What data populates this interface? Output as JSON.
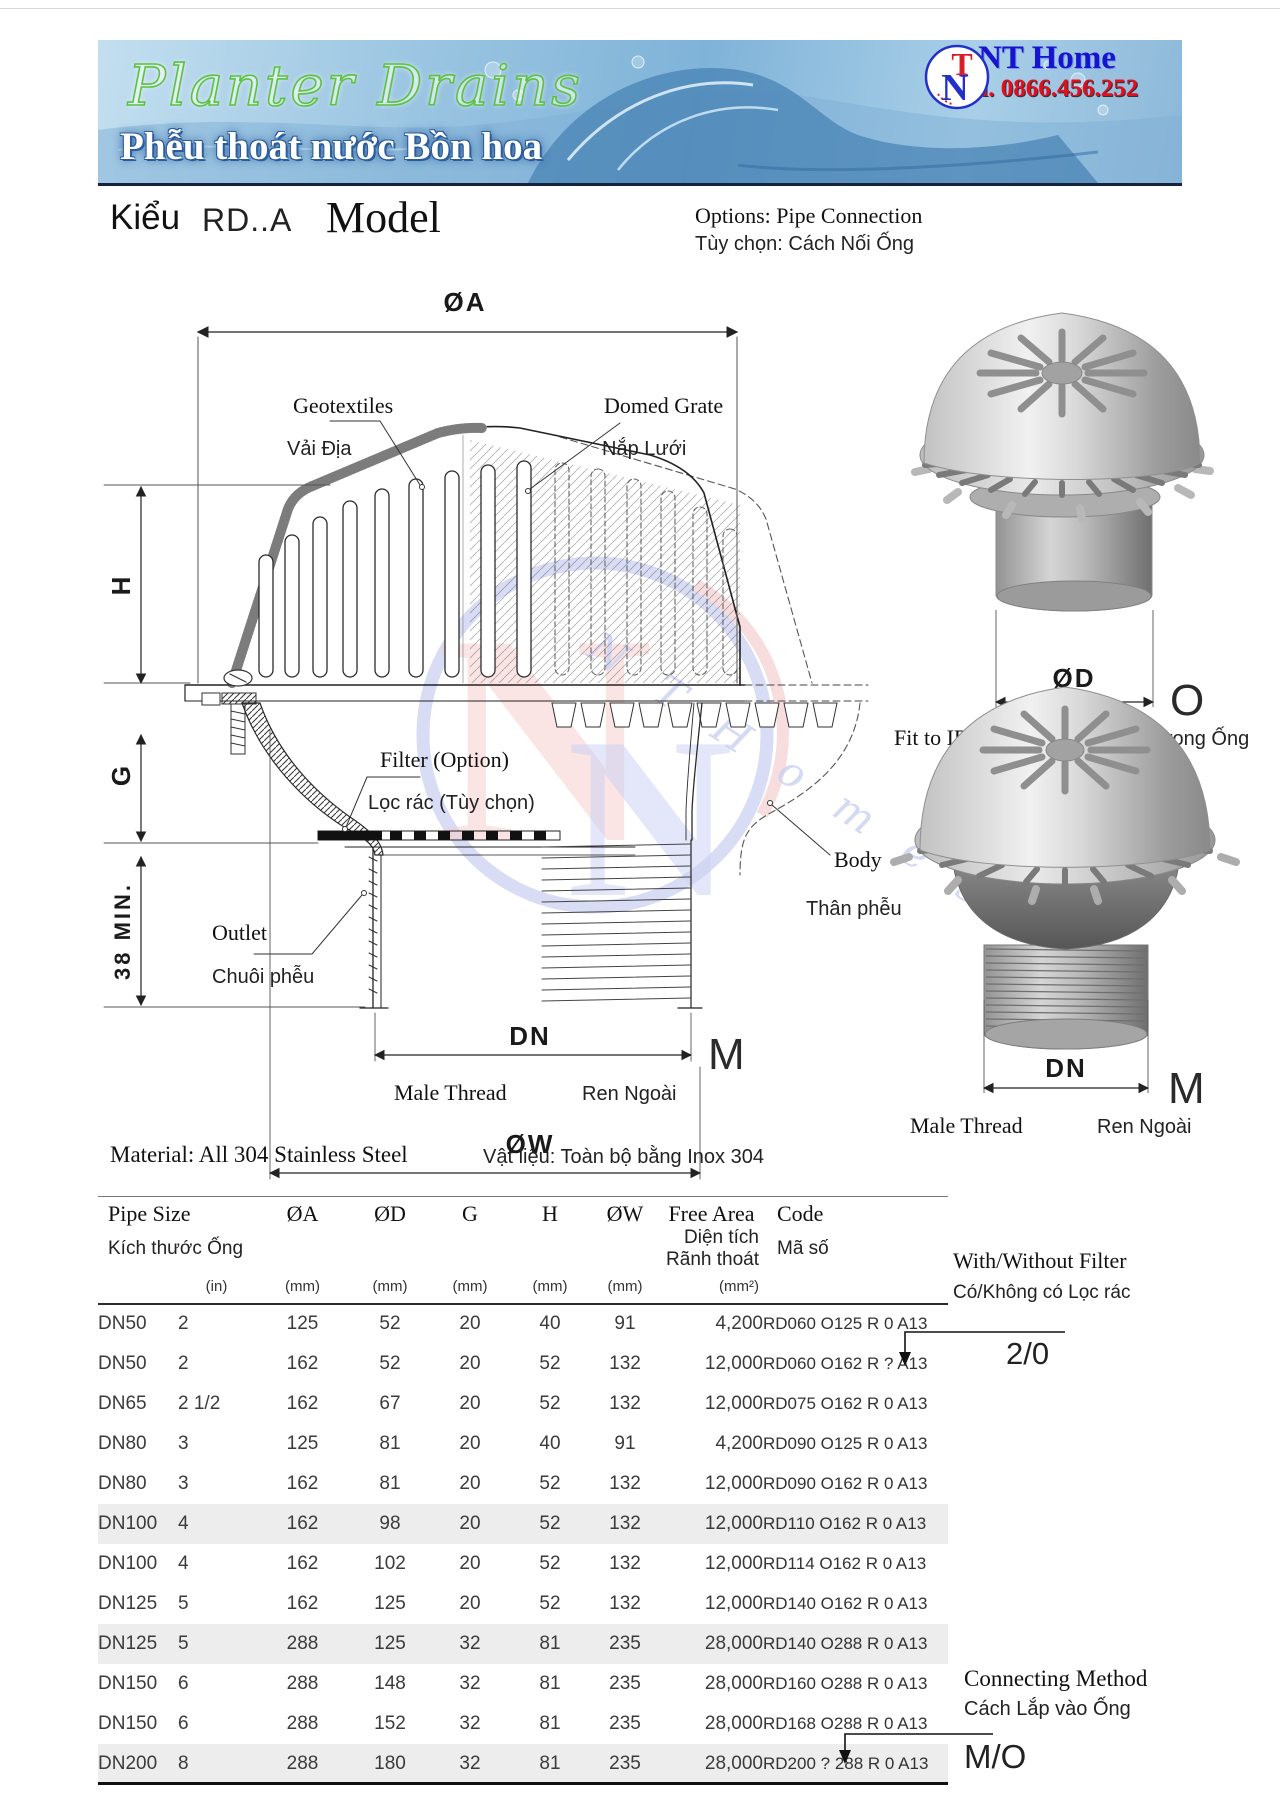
{
  "banner": {
    "title": "Planter Drains",
    "subtitle": "Phễu thoát nước Bồn hoa",
    "brand": "NT Home",
    "phone": "Tel. 0866.456.252",
    "logo_letter_t": "T",
    "logo_letter_n": "N"
  },
  "heading": {
    "kieu": "Kiểu",
    "model_code": "RD..A",
    "model_word": "Model",
    "options_en": "Options: Pipe Connection",
    "options_vi": "Tùy chọn: Cách Nối Ống"
  },
  "diagram": {
    "dim_a": "ØA",
    "dim_d": "ØD",
    "dim_w": "ØW",
    "dim_dn": "DN",
    "dim_dn2": "DN",
    "dim_h": "H",
    "dim_g": "G",
    "dim_min": "38 MIN.",
    "marker_m": "M",
    "marker_m2": "M",
    "marker_o": "O",
    "geotextiles_en": "Geotextiles",
    "geotextiles_vi": "Vải Địa",
    "domed_grate_en": "Domed Grate",
    "domed_grate_vi": "Nắp Lưới",
    "filter_en": "Filter (Option)",
    "filter_vi": "Lọc rác (Tùy chọn)",
    "body_en": "Body",
    "body_vi": "Thân phễu",
    "outlet_en": "Outlet",
    "outlet_vi": "Chuôi phễu",
    "male_thread_en": "Male Thread",
    "male_thread_vi": "Ren Ngoài",
    "male_thread2_en": "Male Thread",
    "male_thread2_vi": "Ren Ngoài",
    "fit_en": "Fit to ID of Pipe",
    "fit_vi": "Lắp vào Trong Ống",
    "watermark": "N T  H o m e s"
  },
  "material": {
    "en": "Material: All 304 Stainless Steel",
    "vi": "Vật liệu: Toàn bộ bằng Inox 304"
  },
  "table": {
    "col_pipe_en": "Pipe Size",
    "col_pipe_vi": "Kích thước Ống",
    "col_a": "ØA",
    "col_d": "ØD",
    "col_g": "G",
    "col_h": "H",
    "col_w": "ØW",
    "col_area_en": "Free Area",
    "col_area_vi1": "Diện tích",
    "col_area_vi2": "Rãnh thoát",
    "col_code_en": "Code",
    "col_code_vi": "Mã số",
    "units": {
      "inch": "(in)",
      "mm": "(mm)",
      "mm2": "(mm²)"
    },
    "rows": [
      {
        "dn": "DN50",
        "inch": "2",
        "a": "125",
        "d": "52",
        "g": "20",
        "h": "40",
        "w": "91",
        "area": "4,200",
        "code": "RD060 O125 R 0 A13",
        "shaded": false
      },
      {
        "dn": "DN50",
        "inch": "2",
        "a": "162",
        "d": "52",
        "g": "20",
        "h": "52",
        "w": "132",
        "area": "12,000",
        "code": "RD060 O162 R ? A13",
        "shaded": false
      },
      {
        "dn": "DN65",
        "inch": "2 1/2",
        "a": "162",
        "d": "67",
        "g": "20",
        "h": "52",
        "w": "132",
        "area": "12,000",
        "code": "RD075 O162 R 0 A13",
        "shaded": false
      },
      {
        "dn": "DN80",
        "inch": "3",
        "a": "125",
        "d": "81",
        "g": "20",
        "h": "40",
        "w": "91",
        "area": "4,200",
        "code": "RD090 O125 R 0 A13",
        "shaded": false
      },
      {
        "dn": "DN80",
        "inch": "3",
        "a": "162",
        "d": "81",
        "g": "20",
        "h": "52",
        "w": "132",
        "area": "12,000",
        "code": "RD090 O162 R 0 A13",
        "shaded": false
      },
      {
        "dn": "DN100",
        "inch": "4",
        "a": "162",
        "d": "98",
        "g": "20",
        "h": "52",
        "w": "132",
        "area": "12,000",
        "code": "RD110 O162 R 0 A13",
        "shaded": true
      },
      {
        "dn": "DN100",
        "inch": "4",
        "a": "162",
        "d": "102",
        "g": "20",
        "h": "52",
        "w": "132",
        "area": "12,000",
        "code": "RD114 O162 R 0 A13",
        "shaded": false
      },
      {
        "dn": "DN125",
        "inch": "5",
        "a": "162",
        "d": "125",
        "g": "20",
        "h": "52",
        "w": "132",
        "area": "12,000",
        "code": "RD140 O162 R 0 A13",
        "shaded": false
      },
      {
        "dn": "DN125",
        "inch": "5",
        "a": "288",
        "d": "125",
        "g": "32",
        "h": "81",
        "w": "235",
        "area": "28,000",
        "code": "RD140 O288 R 0 A13",
        "shaded": true
      },
      {
        "dn": "DN150",
        "inch": "6",
        "a": "288",
        "d": "148",
        "g": "32",
        "h": "81",
        "w": "235",
        "area": "28,000",
        "code": "RD160 O288 R 0 A13",
        "shaded": false
      },
      {
        "dn": "DN150",
        "inch": "6",
        "a": "288",
        "d": "152",
        "g": "32",
        "h": "81",
        "w": "235",
        "area": "28,000",
        "code": "RD168 O288 R 0 A13",
        "shaded": false
      },
      {
        "dn": "DN200",
        "inch": "8",
        "a": "288",
        "d": "180",
        "g": "32",
        "h": "81",
        "w": "235",
        "area": "28,000",
        "code": "RD200 ? 288 R 0 A13",
        "shaded": true
      }
    ]
  },
  "notes": {
    "filter_en": "With/Without Filter",
    "filter_vi": "Có/Không có Lọc rác",
    "filter_val": "2/0",
    "connect_en": "Connecting Method",
    "connect_vi": "Cách Lắp vào Ống",
    "connect_val": "M/O"
  },
  "colors": {
    "brand_blue": "#1515d0",
    "tel_red": "#e60d1e",
    "title_green": "#5cc23f",
    "row_shade": "#ededed",
    "watermark_blue": "#aab4ec",
    "watermark_red": "#f0b9b9"
  }
}
